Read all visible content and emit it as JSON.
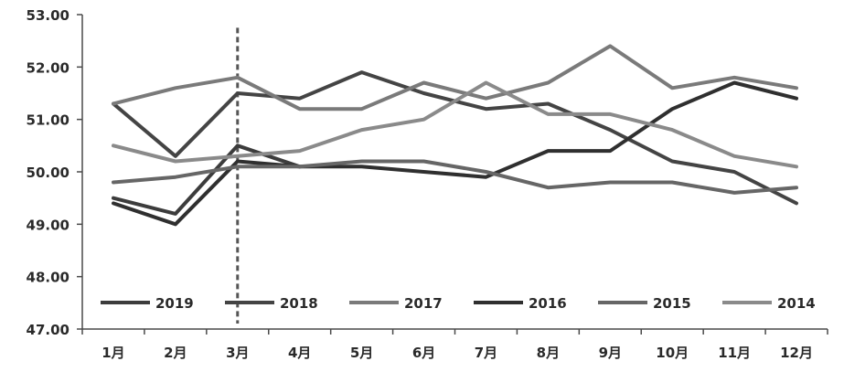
{
  "chart_data": {
    "type": "line",
    "categories": [
      "1月",
      "2月",
      "3月",
      "4月",
      "5月",
      "6月",
      "7月",
      "8月",
      "9月",
      "10月",
      "11月",
      "12月"
    ],
    "ylim": [
      47.0,
      53.0
    ],
    "yticks": [
      "47.00",
      "48.00",
      "49.00",
      "50.00",
      "51.00",
      "52.00",
      "53.00"
    ],
    "grid": false,
    "legend_position": "bottom",
    "marker_line": {
      "category": "3月",
      "style": "dashed"
    },
    "series": [
      {
        "name": "2019",
        "color": "#3c3c3c",
        "values": [
          49.5,
          49.2,
          50.5,
          50.1,
          null,
          null,
          null,
          null,
          null,
          null,
          null,
          null
        ]
      },
      {
        "name": "2018",
        "color": "#444444",
        "values": [
          51.3,
          50.3,
          51.5,
          51.4,
          51.9,
          51.5,
          51.2,
          51.3,
          50.8,
          50.2,
          50.0,
          49.4
        ]
      },
      {
        "name": "2017",
        "color": "#7a7a7a",
        "values": [
          51.3,
          51.6,
          51.8,
          51.2,
          51.2,
          51.7,
          51.4,
          51.7,
          52.4,
          51.6,
          51.8,
          51.6
        ]
      },
      {
        "name": "2016",
        "color": "#2f2f2f",
        "values": [
          49.4,
          49.0,
          50.2,
          50.1,
          50.1,
          50.0,
          49.9,
          50.4,
          50.4,
          51.2,
          51.7,
          51.4
        ]
      },
      {
        "name": "2015",
        "color": "#666666",
        "values": [
          49.8,
          49.9,
          50.1,
          50.1,
          50.2,
          50.2,
          50.0,
          49.7,
          49.8,
          49.8,
          49.6,
          49.7
        ]
      },
      {
        "name": "2014",
        "color": "#8a8a8a",
        "values": [
          50.5,
          50.2,
          50.3,
          50.4,
          50.8,
          51.0,
          51.7,
          51.1,
          51.1,
          50.8,
          50.3,
          50.1
        ]
      }
    ]
  }
}
